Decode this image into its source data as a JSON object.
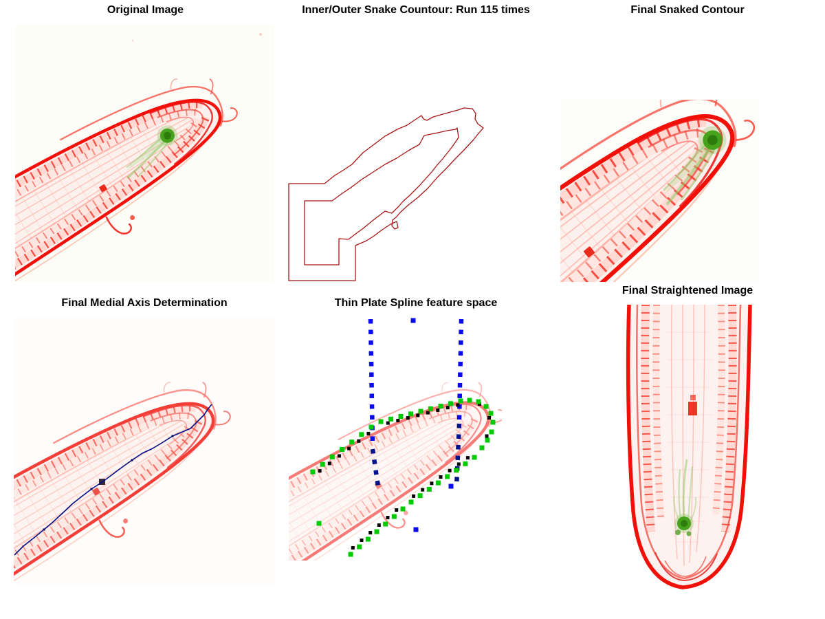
{
  "figure": {
    "type": "image-processing pipeline montage (root tip segmentation)",
    "background": "#ffffff",
    "panels": [
      {
        "id": "original",
        "title": "Original Image"
      },
      {
        "id": "snake",
        "title": "Inner/Outer Snake Countour: Run 115 times"
      },
      {
        "id": "final-snaked",
        "title": "Final Snaked Contour"
      },
      {
        "id": "medial-axis",
        "title": "Final Medial Axis Determination"
      },
      {
        "id": "tps",
        "title": "Thin Plate Spline feature space"
      },
      {
        "id": "straightened",
        "title": "Final Straightened Image"
      }
    ],
    "colors": {
      "root_red": "#f20f08",
      "pale_cell": "#ffd9d2",
      "green_spot": "#3f9e14",
      "contour_line": "#a81515",
      "medial_axis_blue": "#020d86",
      "tps_marker_green": "#00ca00",
      "tps_marker_blue": "#0a0af0",
      "tps_marker_navy": "#00128b",
      "marker_black": "#000000"
    }
  }
}
